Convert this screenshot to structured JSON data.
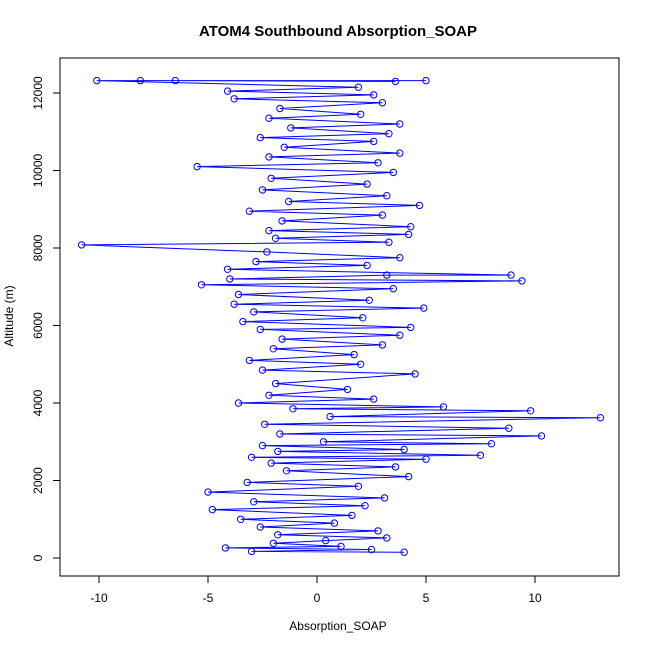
{
  "chart_data": {
    "type": "line",
    "title": "ATOM4 Southbound Absorption_SOAP",
    "xlabel": "Absorption_SOAP",
    "ylabel": "Altitude (m)",
    "xlim": [
      -11.0,
      13.0
    ],
    "ylim": [
      0,
      12300
    ],
    "xticks": [
      -10,
      -5,
      0,
      5,
      10
    ],
    "yticks": [
      0,
      2000,
      4000,
      6000,
      8000,
      10000,
      12000
    ],
    "series_color": "#0000ff",
    "marker": "open-circle",
    "series": [
      {
        "name": "Absorption_SOAP",
        "points": [
          [
            4.0,
            150
          ],
          [
            -3.0,
            170
          ],
          [
            2.5,
            220
          ],
          [
            -4.2,
            260
          ],
          [
            1.1,
            300
          ],
          [
            -2.0,
            380
          ],
          [
            0.4,
            450
          ],
          [
            3.2,
            520
          ],
          [
            -1.8,
            600
          ],
          [
            2.8,
            700
          ],
          [
            -2.6,
            800
          ],
          [
            0.8,
            900
          ],
          [
            -3.5,
            1000
          ],
          [
            1.6,
            1100
          ],
          [
            -4.8,
            1250
          ],
          [
            2.2,
            1350
          ],
          [
            -2.9,
            1450
          ],
          [
            3.1,
            1550
          ],
          [
            -5.0,
            1700
          ],
          [
            1.9,
            1850
          ],
          [
            -3.2,
            1950
          ],
          [
            4.2,
            2100
          ],
          [
            -1.4,
            2250
          ],
          [
            3.6,
            2350
          ],
          [
            -2.1,
            2450
          ],
          [
            5.0,
            2550
          ],
          [
            -3.0,
            2600
          ],
          [
            7.5,
            2650
          ],
          [
            -1.8,
            2750
          ],
          [
            4.0,
            2800
          ],
          [
            -2.5,
            2900
          ],
          [
            8.0,
            2950
          ],
          [
            0.3,
            3000
          ],
          [
            10.3,
            3150
          ],
          [
            -1.7,
            3200
          ],
          [
            8.8,
            3350
          ],
          [
            -2.4,
            3450
          ],
          [
            13.0,
            3620
          ],
          [
            0.6,
            3650
          ],
          [
            9.8,
            3800
          ],
          [
            -1.1,
            3850
          ],
          [
            5.8,
            3900
          ],
          [
            -3.6,
            4000
          ],
          [
            2.6,
            4100
          ],
          [
            -2.2,
            4200
          ],
          [
            1.4,
            4350
          ],
          [
            -1.9,
            4500
          ],
          [
            4.5,
            4750
          ],
          [
            -2.5,
            4850
          ],
          [
            2.0,
            5000
          ],
          [
            -3.1,
            5100
          ],
          [
            1.7,
            5250
          ],
          [
            -2.0,
            5400
          ],
          [
            3.0,
            5500
          ],
          [
            -1.6,
            5650
          ],
          [
            3.8,
            5750
          ],
          [
            -2.6,
            5900
          ],
          [
            4.3,
            5950
          ],
          [
            -3.4,
            6100
          ],
          [
            2.1,
            6200
          ],
          [
            -2.9,
            6350
          ],
          [
            4.9,
            6450
          ],
          [
            -3.8,
            6550
          ],
          [
            2.4,
            6650
          ],
          [
            -3.6,
            6800
          ],
          [
            3.5,
            6950
          ],
          [
            -5.3,
            7050
          ],
          [
            9.4,
            7150
          ],
          [
            -4.0,
            7200
          ],
          [
            3.2,
            7300
          ],
          [
            8.9,
            7300
          ],
          [
            -4.1,
            7450
          ],
          [
            2.3,
            7550
          ],
          [
            -2.8,
            7650
          ],
          [
            3.8,
            7750
          ],
          [
            -2.3,
            7900
          ],
          [
            -10.8,
            8080
          ],
          [
            3.3,
            8150
          ],
          [
            -1.9,
            8250
          ],
          [
            4.2,
            8350
          ],
          [
            -2.2,
            8450
          ],
          [
            4.3,
            8550
          ],
          [
            -1.6,
            8700
          ],
          [
            3.0,
            8850
          ],
          [
            -3.1,
            8950
          ],
          [
            4.7,
            9100
          ],
          [
            -1.3,
            9200
          ],
          [
            3.2,
            9350
          ],
          [
            -2.5,
            9500
          ],
          [
            2.3,
            9650
          ],
          [
            -2.1,
            9800
          ],
          [
            3.5,
            9950
          ],
          [
            -5.5,
            10100
          ],
          [
            2.8,
            10200
          ],
          [
            -2.2,
            10350
          ],
          [
            3.8,
            10450
          ],
          [
            -1.5,
            10600
          ],
          [
            2.6,
            10750
          ],
          [
            -2.6,
            10850
          ],
          [
            3.3,
            10950
          ],
          [
            -1.2,
            11100
          ],
          [
            3.8,
            11200
          ],
          [
            -2.2,
            11350
          ],
          [
            2.0,
            11450
          ],
          [
            -1.7,
            11600
          ],
          [
            3.0,
            11750
          ],
          [
            -3.8,
            11850
          ],
          [
            2.6,
            11950
          ],
          [
            -4.1,
            12050
          ],
          [
            1.9,
            12150
          ],
          [
            -10.1,
            12320
          ],
          [
            5.0,
            12320
          ],
          [
            -8.1,
            12320
          ],
          [
            -6.5,
            12320
          ],
          [
            3.6,
            12300
          ]
        ]
      }
    ]
  }
}
